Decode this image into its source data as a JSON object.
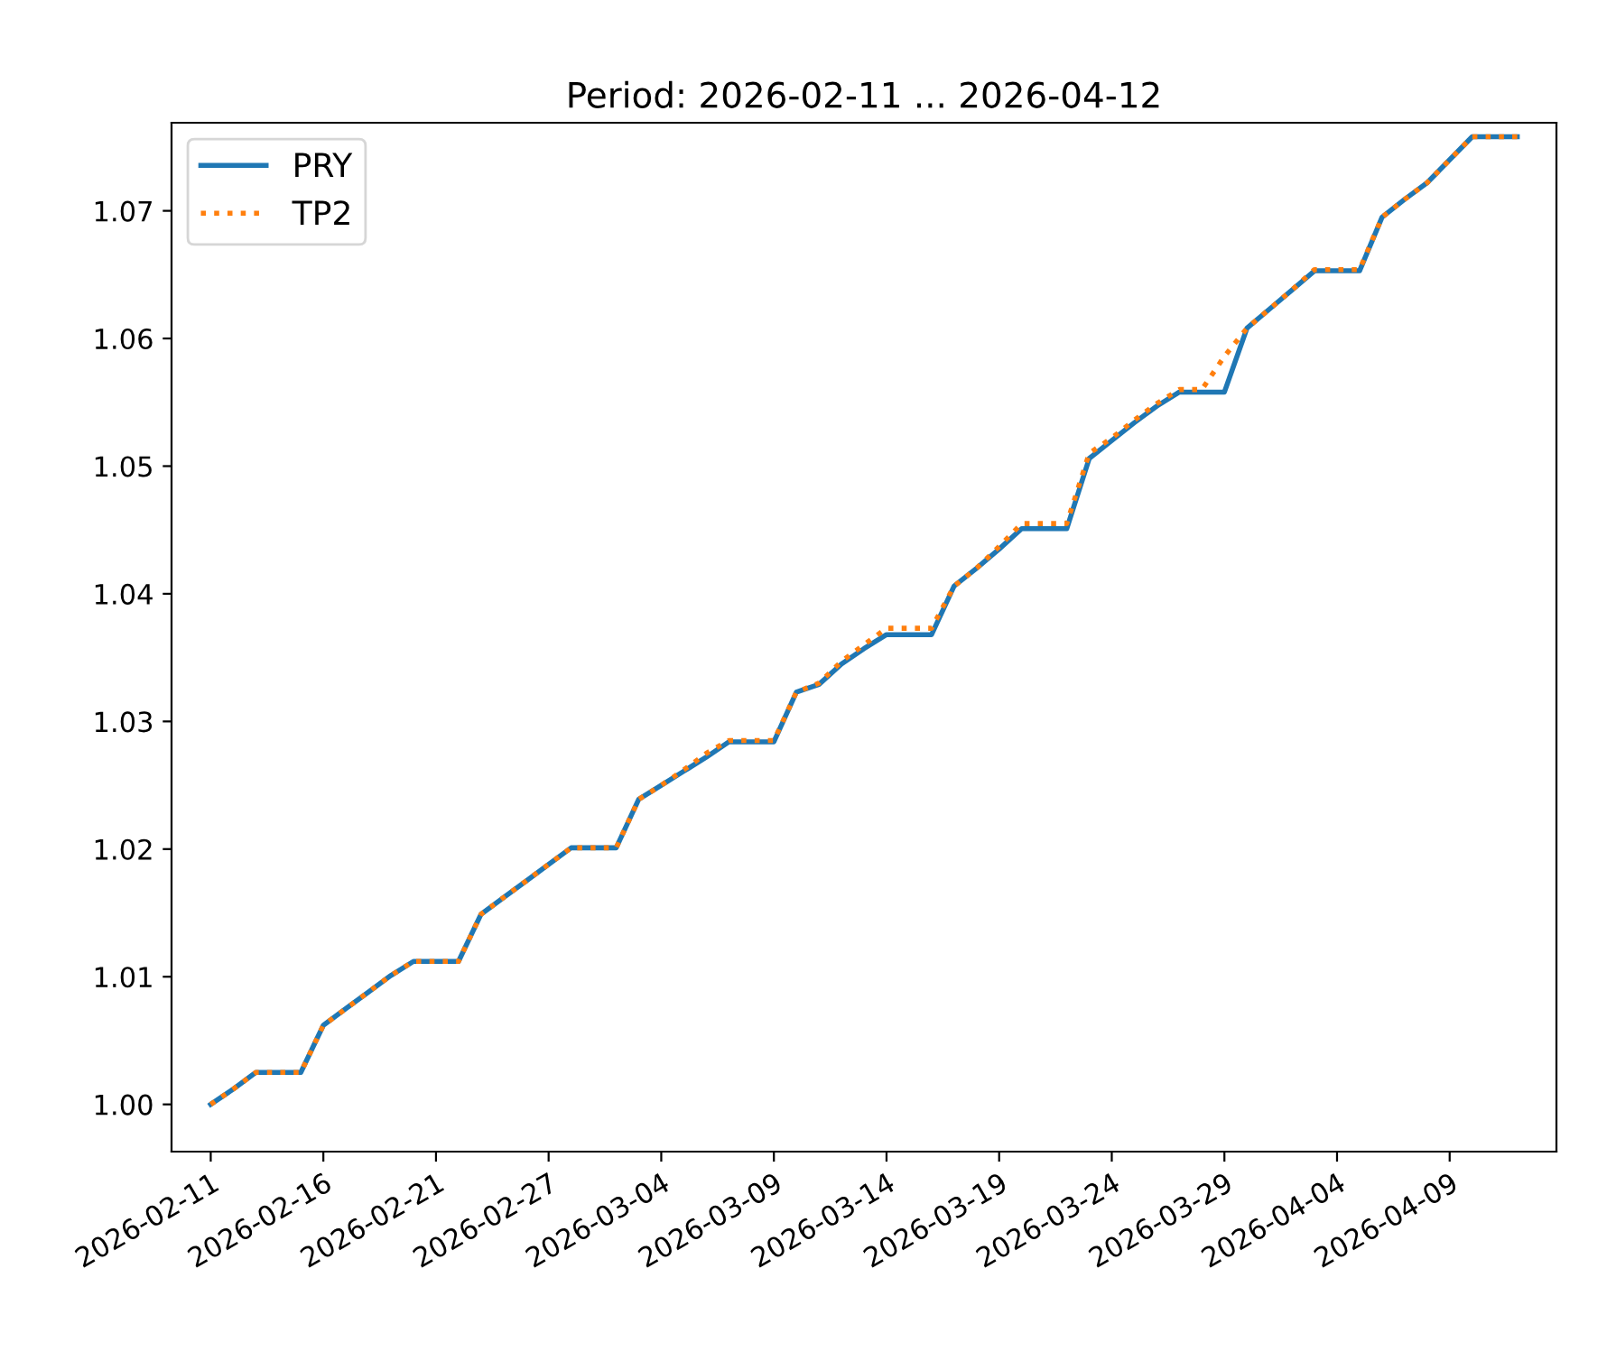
{
  "chart_data": {
    "type": "line",
    "title": "Period: 2026-02-11 ... 2026-04-12",
    "categories": [
      "2026-02-11",
      null,
      null,
      null,
      null,
      "2026-02-16",
      null,
      null,
      null,
      null,
      "2026-02-21",
      null,
      null,
      null,
      null,
      "2026-02-27",
      null,
      null,
      null,
      null,
      "2026-03-04",
      null,
      null,
      null,
      null,
      "2026-03-09",
      null,
      null,
      null,
      null,
      "2026-03-14",
      null,
      null,
      null,
      null,
      "2026-03-19",
      null,
      null,
      null,
      null,
      "2026-03-24",
      null,
      null,
      null,
      null,
      "2026-03-29",
      null,
      null,
      null,
      null,
      "2026-04-04",
      null,
      null,
      null,
      null,
      "2026-04-09",
      null,
      null,
      null
    ],
    "series": [
      {
        "name": "PRY",
        "color": "#1f77b4",
        "line_style": "solid",
        "values": [
          1.0,
          1.0012,
          1.0025,
          1.0025,
          1.0025,
          1.0062,
          1.0075,
          1.0088,
          1.0101,
          1.0112,
          1.0112,
          1.0112,
          1.0149,
          1.0162,
          1.0175,
          1.0188,
          1.0201,
          1.0201,
          1.0201,
          1.0239,
          1.025,
          1.0261,
          1.0272,
          1.0284,
          1.0284,
          1.0284,
          1.0323,
          1.0329,
          1.0345,
          1.0357,
          1.0368,
          1.0368,
          1.0368,
          1.0406,
          1.042,
          1.0435,
          1.0451,
          1.0451,
          1.0451,
          1.0506,
          1.052,
          1.0534,
          1.0547,
          1.0558,
          1.0558,
          1.0558,
          1.0608,
          1.0623,
          1.0638,
          1.0653,
          1.0653,
          1.0653,
          1.0695,
          1.0709,
          1.0722,
          1.074,
          1.0758,
          1.0758,
          1.0758
        ]
      },
      {
        "name": "TP2",
        "color": "#ff7f0e",
        "line_style": "dotted",
        "values": [
          1.0,
          1.0012,
          1.0025,
          1.0025,
          1.0025,
          1.0062,
          1.0075,
          1.0088,
          1.0101,
          1.0112,
          1.0112,
          1.0112,
          1.0149,
          1.0162,
          1.0175,
          1.0188,
          1.0201,
          1.0201,
          1.0201,
          1.0239,
          1.025,
          1.0262,
          1.0275,
          1.0285,
          1.0285,
          1.0285,
          1.0323,
          1.033,
          1.0347,
          1.036,
          1.0373,
          1.0373,
          1.0373,
          1.0406,
          1.042,
          1.0437,
          1.0455,
          1.0455,
          1.0455,
          1.051,
          1.0522,
          1.0536,
          1.0549,
          1.056,
          1.056,
          1.0586,
          1.0608,
          1.0623,
          1.0638,
          1.0654,
          1.0654,
          1.0654,
          1.0695,
          1.0709,
          1.0722,
          1.074,
          1.0758,
          1.0758,
          1.0758
        ]
      }
    ],
    "ylim": [
      0.9963,
      1.0769
    ],
    "yticks": [
      {
        "value": 1.0,
        "label": "1.00"
      },
      {
        "value": 1.01,
        "label": "1.01"
      },
      {
        "value": 1.02,
        "label": "1.02"
      },
      {
        "value": 1.03,
        "label": "1.03"
      },
      {
        "value": 1.04,
        "label": "1.04"
      },
      {
        "value": 1.05,
        "label": "1.05"
      },
      {
        "value": 1.06,
        "label": "1.06"
      },
      {
        "value": 1.07,
        "label": "1.07"
      }
    ],
    "grid": false,
    "legend": "top left",
    "marker": "none"
  }
}
